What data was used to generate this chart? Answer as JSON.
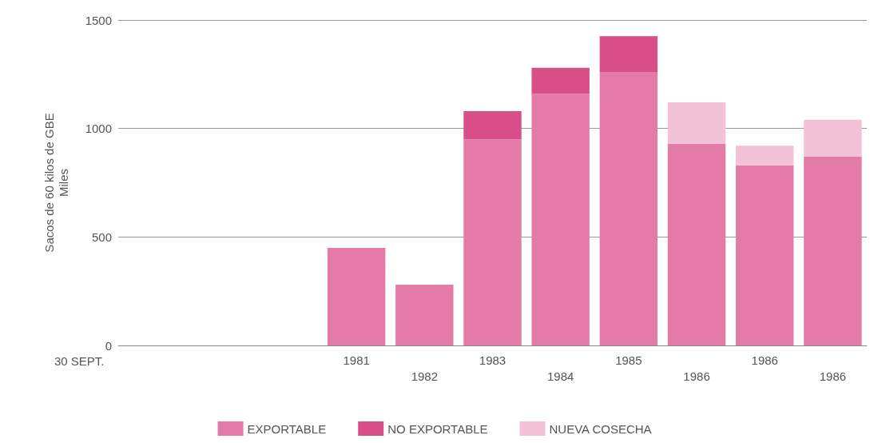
{
  "chart_data": {
    "type": "bar",
    "stacked": true,
    "xlabel": "30 SEPT.",
    "ylabel": "Sacos de 60 kilos de GBE\nMiles",
    "categories": [
      null,
      null,
      null,
      "1981",
      "1982",
      "1983",
      "1984",
      "1985",
      "1986",
      "1986",
      "1986"
    ],
    "series": [
      {
        "name": "EXPORTABLE",
        "color": "#e47aa6",
        "values": [
          null,
          null,
          null,
          450,
          280,
          950,
          1160,
          1260,
          930,
          830,
          870
        ]
      },
      {
        "name": "NO EXPORTABLE",
        "color": "#d84f87",
        "values": [
          null,
          null,
          null,
          null,
          null,
          130,
          120,
          165,
          null,
          null,
          null
        ]
      },
      {
        "name": "NUEVA COSECHA",
        "color": "#f3c2d6",
        "values": [
          null,
          null,
          null,
          null,
          null,
          null,
          null,
          null,
          190,
          90,
          170
        ]
      }
    ],
    "ylim": [
      0,
      1500
    ],
    "yticks": [
      0,
      500,
      1000,
      1500
    ],
    "grid": "y",
    "legend": "bottom"
  }
}
